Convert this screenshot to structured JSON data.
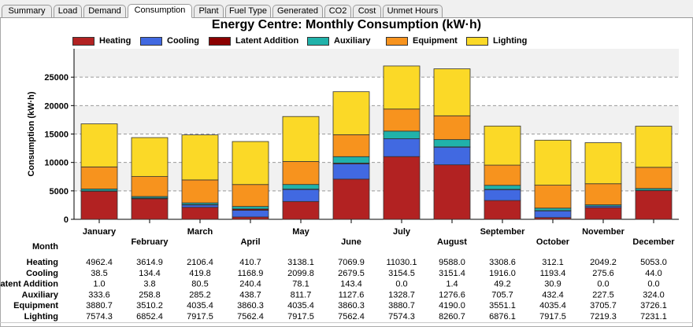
{
  "tabs": [
    {
      "label": "Summary",
      "active": false
    },
    {
      "label": "Load",
      "active": false
    },
    {
      "label": "Demand",
      "active": false
    },
    {
      "label": "Consumption",
      "active": true
    },
    {
      "label": "Plant",
      "active": false
    },
    {
      "label": "Fuel Type",
      "active": false
    },
    {
      "label": "Generated",
      "active": false
    },
    {
      "label": "CO2",
      "active": false
    },
    {
      "label": "Cost",
      "active": false
    },
    {
      "label": "Unmet Hours",
      "active": false
    }
  ],
  "chart_data": {
    "type": "bar",
    "stacked": true,
    "title": "Energy Centre: Monthly Consumption (kW·h)",
    "ylabel": "Consumption (kW·h)",
    "xlabel": "Month",
    "ylim": [
      0,
      30000
    ],
    "yticks": [
      0,
      5000,
      10000,
      15000,
      20000,
      25000
    ],
    "grid": "horizontal dashed",
    "legend_position": "top",
    "categories": [
      "January",
      "February",
      "March",
      "April",
      "May",
      "June",
      "July",
      "August",
      "September",
      "October",
      "November",
      "December"
    ],
    "series": [
      {
        "name": "Heating",
        "color": "#b22222",
        "values": [
          4962.4,
          3614.9,
          2106.4,
          410.7,
          3138.1,
          7069.9,
          11030.1,
          9588.0,
          3308.6,
          312.1,
          2049.2,
          5053.0
        ]
      },
      {
        "name": "Cooling",
        "color": "#4169e1",
        "values": [
          38.5,
          134.4,
          419.8,
          1168.9,
          2099.8,
          2679.5,
          3154.5,
          3151.4,
          1916.0,
          1193.4,
          275.6,
          44.0
        ]
      },
      {
        "name": "Latent Addition",
        "color": "#8b0000",
        "values": [
          1.0,
          3.8,
          80.5,
          240.4,
          78.1,
          143.4,
          0.0,
          1.4,
          49.2,
          30.9,
          0.0,
          0.0
        ]
      },
      {
        "name": "Auxiliary",
        "color": "#20b2aa",
        "values": [
          333.6,
          258.8,
          285.2,
          438.7,
          811.7,
          1127.6,
          1328.7,
          1276.6,
          705.7,
          432.4,
          227.5,
          324.0
        ]
      },
      {
        "name": "Equipment",
        "color": "#f7931e",
        "values": [
          3880.7,
          3510.2,
          4035.4,
          3860.3,
          4035.4,
          3860.3,
          3880.7,
          4190.0,
          3551.1,
          4035.4,
          3705.7,
          3726.1
        ]
      },
      {
        "name": "Lighting",
        "color": "#fbd927",
        "values": [
          7574.3,
          6852.4,
          7917.5,
          7562.4,
          7917.5,
          7562.4,
          7574.3,
          8260.7,
          6876.1,
          7917.5,
          7219.3,
          7231.1
        ]
      }
    ],
    "table_rows": [
      {
        "label": "Heating",
        "cells": [
          "4962.4",
          "3614.9",
          "2106.4",
          "410.7",
          "3138.1",
          "7069.9",
          "11030.1",
          "9588.0",
          "3308.6",
          "312.1",
          "2049.2",
          "5053.0"
        ]
      },
      {
        "label": "Cooling",
        "cells": [
          "38.5",
          "134.4",
          "419.8",
          "1168.9",
          "2099.8",
          "2679.5",
          "3154.5",
          "3151.4",
          "1916.0",
          "1193.4",
          "275.6",
          "44.0"
        ]
      },
      {
        "label": "Latent Addition",
        "cells": [
          "1.0",
          "3.8",
          "80.5",
          "240.4",
          "78.1",
          "143.4",
          "0.0",
          "1.4",
          "49.2",
          "30.9",
          "0.0",
          "0.0"
        ]
      },
      {
        "label": "Auxiliary",
        "cells": [
          "333.6",
          "258.8",
          "285.2",
          "438.7",
          "811.7",
          "1127.6",
          "1328.7",
          "1276.6",
          "705.7",
          "432.4",
          "227.5",
          "324.0"
        ]
      },
      {
        "label": "Equipment",
        "cells": [
          "3880.7",
          "3510.2",
          "4035.4",
          "3860.3",
          "4035.4",
          "3860.3",
          "3880.7",
          "4190.0",
          "3551.1",
          "4035.4",
          "3705.7",
          "3726.1"
        ]
      },
      {
        "label": "Lighting",
        "cells": [
          "7574.3",
          "6852.4",
          "7917.5",
          "7562.4",
          "7917.5",
          "7562.4",
          "7574.3",
          "8260.7",
          "6876.1",
          "7917.5",
          "7219.3",
          "7231.1"
        ]
      }
    ]
  }
}
